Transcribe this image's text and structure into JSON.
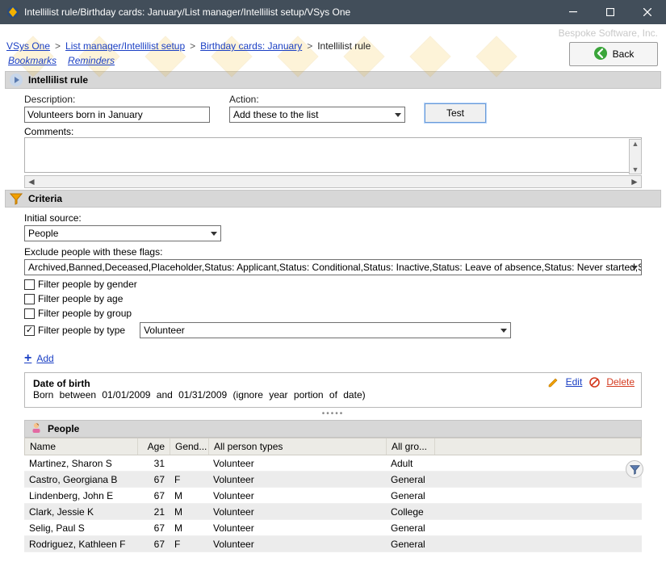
{
  "window": {
    "title": "Intellilist rule/Birthday cards: January/List manager/Intellilist setup/VSys One"
  },
  "vendor": "Bespoke Software, Inc.",
  "breadcrumb": {
    "seg1": "VSys One",
    "seg2": "List manager/Intellilist setup",
    "seg3": "Birthday cards: January",
    "current": "Intellilist rule",
    "sep": ">"
  },
  "links": {
    "bookmarks": "Bookmarks",
    "reminders": "Reminders"
  },
  "back_label": "Back",
  "rule": {
    "header": "Intellilist rule",
    "description_label": "Description:",
    "description_value": "Volunteers born in January",
    "action_label": "Action:",
    "action_value": "Add these to the list",
    "test_label": "Test",
    "comments_label": "Comments:"
  },
  "criteria": {
    "header": "Criteria",
    "initial_source_label": "Initial source:",
    "initial_source_value": "People",
    "exclude_label": "Exclude people with these flags:",
    "exclude_value": "Archived,Banned,Deceased,Placeholder,Status: Applicant,Status: Conditional,Status: Inactive,Status: Leave of absence,Status: Never started,Status",
    "filters": {
      "gender": {
        "label": "Filter people by gender",
        "checked": false
      },
      "age": {
        "label": "Filter people by age",
        "checked": false
      },
      "group": {
        "label": "Filter people by group",
        "checked": false
      },
      "type": {
        "label": "Filter people by type",
        "checked": true,
        "value": "Volunteer"
      }
    },
    "add_label": "Add"
  },
  "dob": {
    "title": "Date of birth",
    "text": "Born between 01/01/2009 and 01/31/2009 (ignore year portion of date)",
    "edit": "Edit",
    "delete": "Delete"
  },
  "people": {
    "header": "People",
    "columns": {
      "name": "Name",
      "age": "Age",
      "gender": "Gend...",
      "types": "All person types",
      "groups": "All gro..."
    },
    "rows": [
      {
        "name": "Martinez, Sharon S",
        "age": "31",
        "gender": "",
        "types": "Volunteer",
        "groups": "Adult"
      },
      {
        "name": "Castro, Georgiana B",
        "age": "67",
        "gender": "F",
        "types": "Volunteer",
        "groups": "General"
      },
      {
        "name": "Lindenberg, John E",
        "age": "67",
        "gender": "M",
        "types": "Volunteer",
        "groups": "General"
      },
      {
        "name": "Clark, Jessie K",
        "age": "21",
        "gender": "M",
        "types": "Volunteer",
        "groups": "College"
      },
      {
        "name": "Selig, Paul S",
        "age": "67",
        "gender": "M",
        "types": "Volunteer",
        "groups": "General"
      },
      {
        "name": "Rodriguez, Kathleen F",
        "age": "67",
        "gender": "F",
        "types": "Volunteer",
        "groups": "General"
      }
    ]
  },
  "colors": {
    "titlebar": "#424e5a",
    "section_bg": "#d7d7d7",
    "link": "#1a3fc4"
  }
}
